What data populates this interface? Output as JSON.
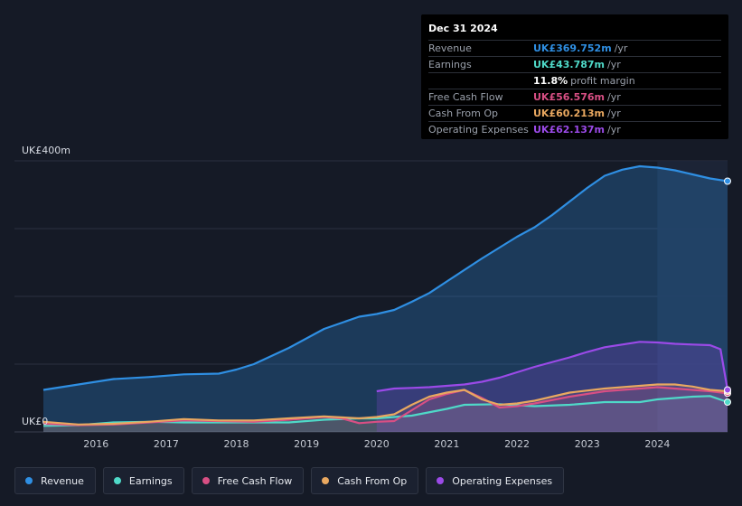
{
  "chart_data": {
    "type": "area",
    "y_unit_label_top": "UK£400m",
    "y_unit_label_bottom": "UK£0",
    "ylim": [
      0,
      400
    ],
    "xlim": [
      2015.25,
      2025.0
    ],
    "x_ticks": [
      "2016",
      "2017",
      "2018",
      "2019",
      "2020",
      "2021",
      "2022",
      "2023",
      "2024"
    ],
    "series": [
      {
        "name": "Revenue",
        "color": "#2f8fe3",
        "points": [
          [
            2015.25,
            62
          ],
          [
            2015.75,
            70
          ],
          [
            2016.25,
            78
          ],
          [
            2016.75,
            81
          ],
          [
            2017.25,
            85
          ],
          [
            2017.75,
            86
          ],
          [
            2018.0,
            92
          ],
          [
            2018.25,
            100
          ],
          [
            2018.75,
            124
          ],
          [
            2019.25,
            152
          ],
          [
            2019.75,
            170
          ],
          [
            2020.0,
            174
          ],
          [
            2020.25,
            180
          ],
          [
            2020.5,
            192
          ],
          [
            2020.75,
            205
          ],
          [
            2021.0,
            222
          ],
          [
            2021.5,
            256
          ],
          [
            2022.0,
            288
          ],
          [
            2022.25,
            302
          ],
          [
            2022.5,
            320
          ],
          [
            2022.75,
            340
          ],
          [
            2023.0,
            360
          ],
          [
            2023.25,
            378
          ],
          [
            2023.5,
            387
          ],
          [
            2023.75,
            392
          ],
          [
            2024.0,
            390
          ],
          [
            2024.25,
            386
          ],
          [
            2024.5,
            380
          ],
          [
            2024.75,
            374
          ],
          [
            2025.0,
            370
          ]
        ]
      },
      {
        "name": "Earnings",
        "color": "#4fd9c8",
        "points": [
          [
            2015.25,
            9
          ],
          [
            2015.75,
            10
          ],
          [
            2016.25,
            14
          ],
          [
            2016.75,
            15
          ],
          [
            2017.25,
            14
          ],
          [
            2017.75,
            14
          ],
          [
            2018.25,
            14
          ],
          [
            2018.75,
            14
          ],
          [
            2019.25,
            18
          ],
          [
            2019.75,
            20
          ],
          [
            2020.0,
            20
          ],
          [
            2020.5,
            24
          ],
          [
            2021.0,
            34
          ],
          [
            2021.25,
            40
          ],
          [
            2021.75,
            41
          ],
          [
            2022.25,
            38
          ],
          [
            2022.75,
            40
          ],
          [
            2023.25,
            44
          ],
          [
            2023.75,
            44
          ],
          [
            2024.0,
            48
          ],
          [
            2024.5,
            52
          ],
          [
            2024.75,
            53
          ],
          [
            2025.0,
            44
          ]
        ]
      },
      {
        "name": "Free Cash Flow",
        "color": "#d84f84",
        "points": [
          [
            2015.25,
            12
          ],
          [
            2015.75,
            10
          ],
          [
            2016.25,
            11
          ],
          [
            2016.75,
            14
          ],
          [
            2017.25,
            17
          ],
          [
            2017.75,
            16
          ],
          [
            2018.25,
            15
          ],
          [
            2018.75,
            18
          ],
          [
            2019.25,
            22
          ],
          [
            2019.5,
            20
          ],
          [
            2019.75,
            13
          ],
          [
            2020.0,
            15
          ],
          [
            2020.25,
            16
          ],
          [
            2020.5,
            32
          ],
          [
            2020.75,
            48
          ],
          [
            2021.0,
            56
          ],
          [
            2021.25,
            62
          ],
          [
            2021.5,
            50
          ],
          [
            2021.75,
            36
          ],
          [
            2022.0,
            38
          ],
          [
            2022.25,
            42
          ],
          [
            2022.75,
            52
          ],
          [
            2023.25,
            60
          ],
          [
            2023.75,
            64
          ],
          [
            2024.0,
            66
          ],
          [
            2024.25,
            64
          ],
          [
            2024.5,
            62
          ],
          [
            2024.75,
            60
          ],
          [
            2025.0,
            57
          ]
        ]
      },
      {
        "name": "Cash From Op",
        "color": "#e9a860",
        "points": [
          [
            2015.25,
            15
          ],
          [
            2015.75,
            11
          ],
          [
            2016.25,
            12
          ],
          [
            2016.75,
            15
          ],
          [
            2017.25,
            19
          ],
          [
            2017.75,
            17
          ],
          [
            2018.25,
            17
          ],
          [
            2018.75,
            20
          ],
          [
            2019.25,
            23
          ],
          [
            2019.75,
            20
          ],
          [
            2020.0,
            22
          ],
          [
            2020.25,
            26
          ],
          [
            2020.5,
            40
          ],
          [
            2020.75,
            52
          ],
          [
            2021.0,
            58
          ],
          [
            2021.25,
            62
          ],
          [
            2021.5,
            48
          ],
          [
            2021.75,
            40
          ],
          [
            2022.0,
            42
          ],
          [
            2022.25,
            46
          ],
          [
            2022.75,
            58
          ],
          [
            2023.25,
            64
          ],
          [
            2023.75,
            68
          ],
          [
            2024.0,
            70
          ],
          [
            2024.25,
            70
          ],
          [
            2024.5,
            67
          ],
          [
            2024.75,
            62
          ],
          [
            2025.0,
            60
          ]
        ]
      },
      {
        "name": "Operating Expenses",
        "color": "#9b4ae8",
        "points": [
          [
            2020.0,
            60
          ],
          [
            2020.25,
            64
          ],
          [
            2020.5,
            65
          ],
          [
            2020.75,
            66
          ],
          [
            2021.0,
            68
          ],
          [
            2021.25,
            70
          ],
          [
            2021.5,
            74
          ],
          [
            2021.75,
            80
          ],
          [
            2022.0,
            88
          ],
          [
            2022.25,
            96
          ],
          [
            2022.75,
            110
          ],
          [
            2023.0,
            118
          ],
          [
            2023.25,
            125
          ],
          [
            2023.5,
            129
          ],
          [
            2023.75,
            133
          ],
          [
            2024.0,
            132
          ],
          [
            2024.25,
            130
          ],
          [
            2024.5,
            129
          ],
          [
            2024.75,
            128
          ],
          [
            2024.9,
            122
          ],
          [
            2025.0,
            62
          ]
        ]
      }
    ],
    "forecast_shade_start": 2024.0,
    "tooltip": {
      "date": "Dec 31 2024",
      "rows": [
        {
          "label": "Revenue",
          "value": "UK£369.752m",
          "unit": "/yr",
          "color": "#2f8fe3"
        },
        {
          "label": "Earnings",
          "value": "UK£43.787m",
          "unit": "/yr",
          "color": "#4fd9c8"
        },
        {
          "label": "",
          "value": "11.8%",
          "unit": "profit margin",
          "color": "#ffffff"
        },
        {
          "label": "Free Cash Flow",
          "value": "UK£56.576m",
          "unit": "/yr",
          "color": "#d84f84"
        },
        {
          "label": "Cash From Op",
          "value": "UK£60.213m",
          "unit": "/yr",
          "color": "#e9a860"
        },
        {
          "label": "Operating Expenses",
          "value": "UK£62.137m",
          "unit": "/yr",
          "color": "#9b4ae8"
        }
      ]
    }
  },
  "legend": [
    {
      "label": "Revenue",
      "color": "#2f8fe3"
    },
    {
      "label": "Earnings",
      "color": "#4fd9c8"
    },
    {
      "label": "Free Cash Flow",
      "color": "#d84f84"
    },
    {
      "label": "Cash From Op",
      "color": "#e9a860"
    },
    {
      "label": "Operating Expenses",
      "color": "#9b4ae8"
    }
  ]
}
